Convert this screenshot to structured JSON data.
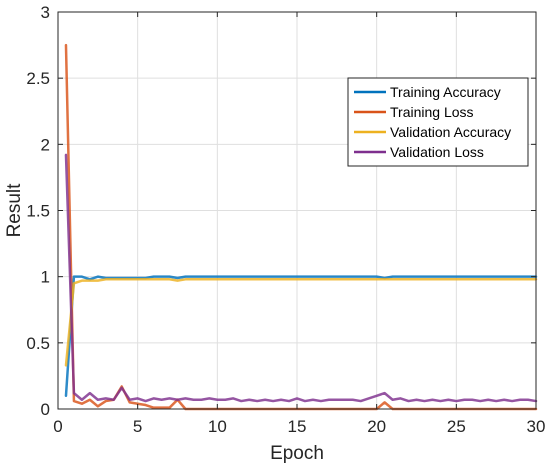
{
  "chart_data": {
    "type": "line",
    "title": "",
    "xlabel": "Epoch",
    "ylabel": "Result",
    "xlim": [
      0,
      30
    ],
    "ylim": [
      0,
      3
    ],
    "xticks": [
      0,
      5,
      10,
      15,
      20,
      25,
      30
    ],
    "xtick_labels": [
      "0",
      "5",
      "10",
      "15",
      "20",
      "25",
      "30"
    ],
    "yticks": [
      0,
      0.5,
      1,
      1.5,
      2,
      2.5,
      3
    ],
    "ytick_labels": [
      "0",
      "0.5",
      "1",
      "1.5",
      "2",
      "2.5",
      "3"
    ],
    "grid": true,
    "legend_position": "top-right",
    "series": [
      {
        "name": "Training Accuracy",
        "color": "#0072BD",
        "x": [
          0.5,
          1,
          1.5,
          2,
          2.5,
          3,
          3.5,
          4,
          4.5,
          5,
          5.5,
          6,
          6.5,
          7,
          7.5,
          8,
          8.5,
          9,
          9.5,
          10,
          10.5,
          11,
          11.5,
          12,
          12.5,
          13,
          13.5,
          14,
          14.5,
          15,
          15.5,
          16,
          16.5,
          17,
          17.5,
          18,
          18.5,
          19,
          19.5,
          20,
          20.5,
          21,
          21.5,
          22,
          22.5,
          23,
          23.5,
          24,
          24.5,
          25,
          25.5,
          26,
          26.5,
          27,
          27.5,
          28,
          28.5,
          29,
          29.5,
          30
        ],
        "y": [
          0.1,
          1.0,
          1.0,
          0.98,
          1.0,
          0.99,
          0.99,
          0.99,
          0.99,
          0.99,
          0.99,
          1.0,
          1.0,
          1.0,
          0.99,
          1.0,
          1.0,
          1.0,
          1.0,
          1.0,
          1.0,
          1.0,
          1.0,
          1.0,
          1.0,
          1.0,
          1.0,
          1.0,
          1.0,
          1.0,
          1.0,
          1.0,
          1.0,
          1.0,
          1.0,
          1.0,
          1.0,
          1.0,
          1.0,
          1.0,
          0.99,
          1.0,
          1.0,
          1.0,
          1.0,
          1.0,
          1.0,
          1.0,
          1.0,
          1.0,
          1.0,
          1.0,
          1.0,
          1.0,
          1.0,
          1.0,
          1.0,
          1.0,
          1.0,
          1.0
        ]
      },
      {
        "name": "Training Loss",
        "color": "#D95319",
        "x": [
          0.5,
          1,
          1.5,
          2,
          2.5,
          3,
          3.5,
          4,
          4.5,
          5,
          5.5,
          6,
          6.5,
          7,
          7.5,
          8,
          8.5,
          9,
          9.5,
          10,
          10.5,
          11,
          11.5,
          12,
          12.5,
          13,
          13.5,
          14,
          14.5,
          15,
          15.5,
          16,
          16.5,
          17,
          17.5,
          18,
          18.5,
          19,
          19.5,
          20,
          20.5,
          21,
          21.5,
          22,
          22.5,
          23,
          23.5,
          24,
          24.5,
          25,
          25.5,
          26,
          26.5,
          27,
          27.5,
          28,
          28.5,
          29,
          29.5,
          30
        ],
        "y": [
          2.75,
          0.06,
          0.04,
          0.07,
          0.02,
          0.06,
          0.07,
          0.17,
          0.05,
          0.04,
          0.03,
          0.01,
          0.01,
          0.01,
          0.07,
          0.0,
          0.0,
          0.0,
          0.0,
          0.0,
          0.0,
          0.0,
          0.0,
          0.0,
          0.0,
          0.0,
          0.0,
          0.0,
          0.0,
          0.0,
          0.0,
          0.0,
          0.0,
          0.0,
          0.0,
          0.0,
          0.0,
          0.0,
          0.0,
          0.0,
          0.05,
          0.0,
          0.0,
          0.0,
          0.0,
          0.0,
          0.0,
          0.0,
          0.0,
          0.0,
          0.0,
          0.0,
          0.0,
          0.0,
          0.0,
          0.0,
          0.0,
          0.0,
          0.0,
          0.0
        ]
      },
      {
        "name": "Validation Accuracy",
        "color": "#EDB120",
        "x": [
          0.5,
          1,
          1.5,
          2,
          2.5,
          3,
          3.5,
          4,
          4.5,
          5,
          5.5,
          6,
          6.5,
          7,
          7.5,
          8,
          8.5,
          9,
          9.5,
          10,
          10.5,
          11,
          11.5,
          12,
          12.5,
          13,
          13.5,
          14,
          14.5,
          15,
          15.5,
          16,
          16.5,
          17,
          17.5,
          18,
          18.5,
          19,
          19.5,
          20,
          20.5,
          21,
          21.5,
          22,
          22.5,
          23,
          23.5,
          24,
          24.5,
          25,
          25.5,
          26,
          26.5,
          27,
          27.5,
          28,
          28.5,
          29,
          29.5,
          30
        ],
        "y": [
          0.33,
          0.95,
          0.97,
          0.97,
          0.97,
          0.98,
          0.98,
          0.98,
          0.98,
          0.98,
          0.98,
          0.98,
          0.98,
          0.98,
          0.97,
          0.98,
          0.98,
          0.98,
          0.98,
          0.98,
          0.98,
          0.98,
          0.98,
          0.98,
          0.98,
          0.98,
          0.98,
          0.98,
          0.98,
          0.98,
          0.98,
          0.98,
          0.98,
          0.98,
          0.98,
          0.98,
          0.98,
          0.98,
          0.98,
          0.98,
          0.98,
          0.98,
          0.98,
          0.98,
          0.98,
          0.98,
          0.98,
          0.98,
          0.98,
          0.98,
          0.98,
          0.98,
          0.98,
          0.98,
          0.98,
          0.98,
          0.98,
          0.98,
          0.98,
          0.98
        ]
      },
      {
        "name": "Validation Loss",
        "color": "#7E2F8E",
        "x": [
          0.5,
          1,
          1.5,
          2,
          2.5,
          3,
          3.5,
          4,
          4.5,
          5,
          5.5,
          6,
          6.5,
          7,
          7.5,
          8,
          8.5,
          9,
          9.5,
          10,
          10.5,
          11,
          11.5,
          12,
          12.5,
          13,
          13.5,
          14,
          14.5,
          15,
          15.5,
          16,
          16.5,
          17,
          17.5,
          18,
          18.5,
          19,
          19.5,
          20,
          20.5,
          21,
          21.5,
          22,
          22.5,
          23,
          23.5,
          24,
          24.5,
          25,
          25.5,
          26,
          26.5,
          27,
          27.5,
          28,
          28.5,
          29,
          29.5,
          30
        ],
        "y": [
          1.92,
          0.12,
          0.07,
          0.12,
          0.07,
          0.08,
          0.07,
          0.16,
          0.07,
          0.08,
          0.06,
          0.08,
          0.07,
          0.08,
          0.07,
          0.08,
          0.07,
          0.07,
          0.08,
          0.07,
          0.07,
          0.08,
          0.06,
          0.07,
          0.06,
          0.07,
          0.06,
          0.07,
          0.06,
          0.08,
          0.06,
          0.07,
          0.06,
          0.07,
          0.07,
          0.07,
          0.07,
          0.06,
          0.08,
          0.1,
          0.12,
          0.07,
          0.08,
          0.06,
          0.07,
          0.06,
          0.07,
          0.06,
          0.07,
          0.06,
          0.07,
          0.07,
          0.06,
          0.07,
          0.06,
          0.07,
          0.06,
          0.07,
          0.07,
          0.06
        ]
      }
    ]
  }
}
